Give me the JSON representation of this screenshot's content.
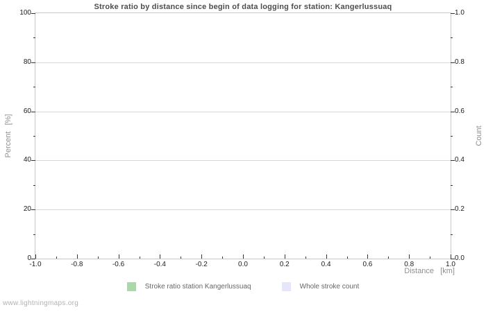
{
  "title": "Stroke ratio by distance since begin of data logging for station: Kangerlussuaq",
  "footer": {
    "text": "www.lightningmaps.org"
  },
  "chart_data": {
    "type": "line",
    "title": "Stroke ratio by distance since begin of data logging for station: Kangerlussuaq",
    "x_axis": {
      "label": "Distance   [km]",
      "min": -1.0,
      "max": 1.0,
      "tick_labels": [
        "-1.0",
        "-0.8",
        "-0.6",
        "-0.4",
        "-0.2",
        "0.0",
        "0.2",
        "0.4",
        "0.6",
        "0.8",
        "1.0"
      ],
      "minor_ticks_between_majors": 1
    },
    "y_axis_left": {
      "label": "Percent   [%]",
      "min": 0,
      "max": 100,
      "tick_labels": [
        "0",
        "20",
        "40",
        "60",
        "80",
        "100"
      ],
      "minor_ticks_between_majors": 1
    },
    "y_axis_right": {
      "label": "Count",
      "min": 0.0,
      "max": 1.0,
      "tick_labels": [
        "0.0",
        "0.2",
        "0.4",
        "0.6",
        "0.8",
        "1.0"
      ],
      "minor_ticks_between_majors": 1
    },
    "grid": {
      "horizontal": true,
      "vertical": false,
      "color": "#d6d6d6"
    },
    "legend": [
      {
        "label": "Stroke ratio station Kangerlussuaq",
        "color": "#a9d8a9"
      },
      {
        "label": "Whole stroke count",
        "color": "#e6e6fa"
      }
    ],
    "series": []
  }
}
